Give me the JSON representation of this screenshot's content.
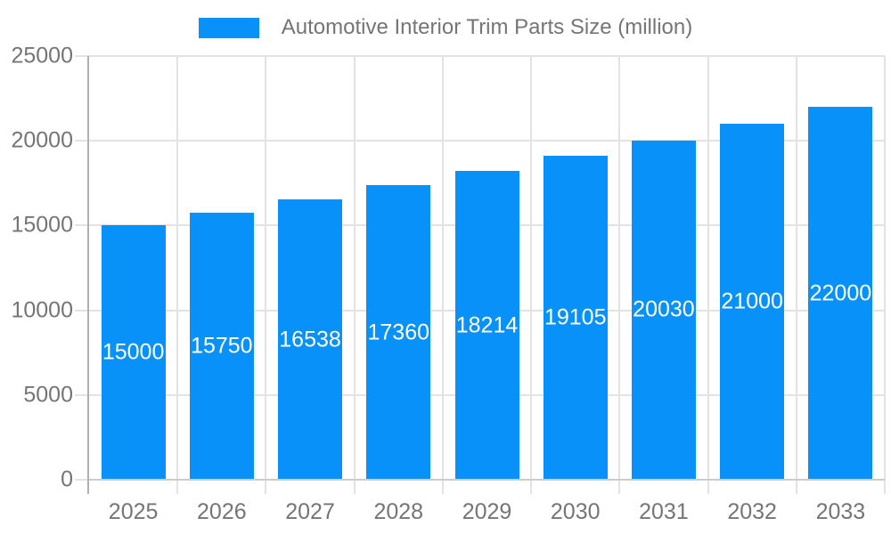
{
  "legend": {
    "label": "Automotive Interior Trim Parts Size (million)"
  },
  "chart_data": {
    "type": "bar",
    "title": "Automotive Interior Trim Parts Size (million)",
    "series_name": "Automotive Interior Trim Parts Size (million)",
    "categories": [
      "2025",
      "2026",
      "2027",
      "2028",
      "2029",
      "2030",
      "2031",
      "2032",
      "2033"
    ],
    "values": [
      15000,
      15750,
      16538,
      17360,
      18214,
      19105,
      20030,
      21000,
      22000
    ],
    "data_labels": [
      "15000",
      "15750",
      "16538",
      "17360",
      "18214",
      "19105",
      "20030",
      "21000",
      "22000"
    ],
    "ylim": [
      0,
      25000
    ],
    "yticks": [
      0,
      5000,
      10000,
      15000,
      20000,
      25000
    ],
    "ytick_labels": [
      "0",
      "5000",
      "10000",
      "15000",
      "20000",
      "25000"
    ],
    "grid": true,
    "legend_position": "top-center",
    "bar_color": "#0991fa",
    "bar_label_color": "#ffffff",
    "axis_text_color": "#757575",
    "grid_color": "#e3e3e3",
    "axis_line_color": "#b0b0b0",
    "zero_line_color": "#cccccc",
    "background_color": "#ffffff"
  }
}
